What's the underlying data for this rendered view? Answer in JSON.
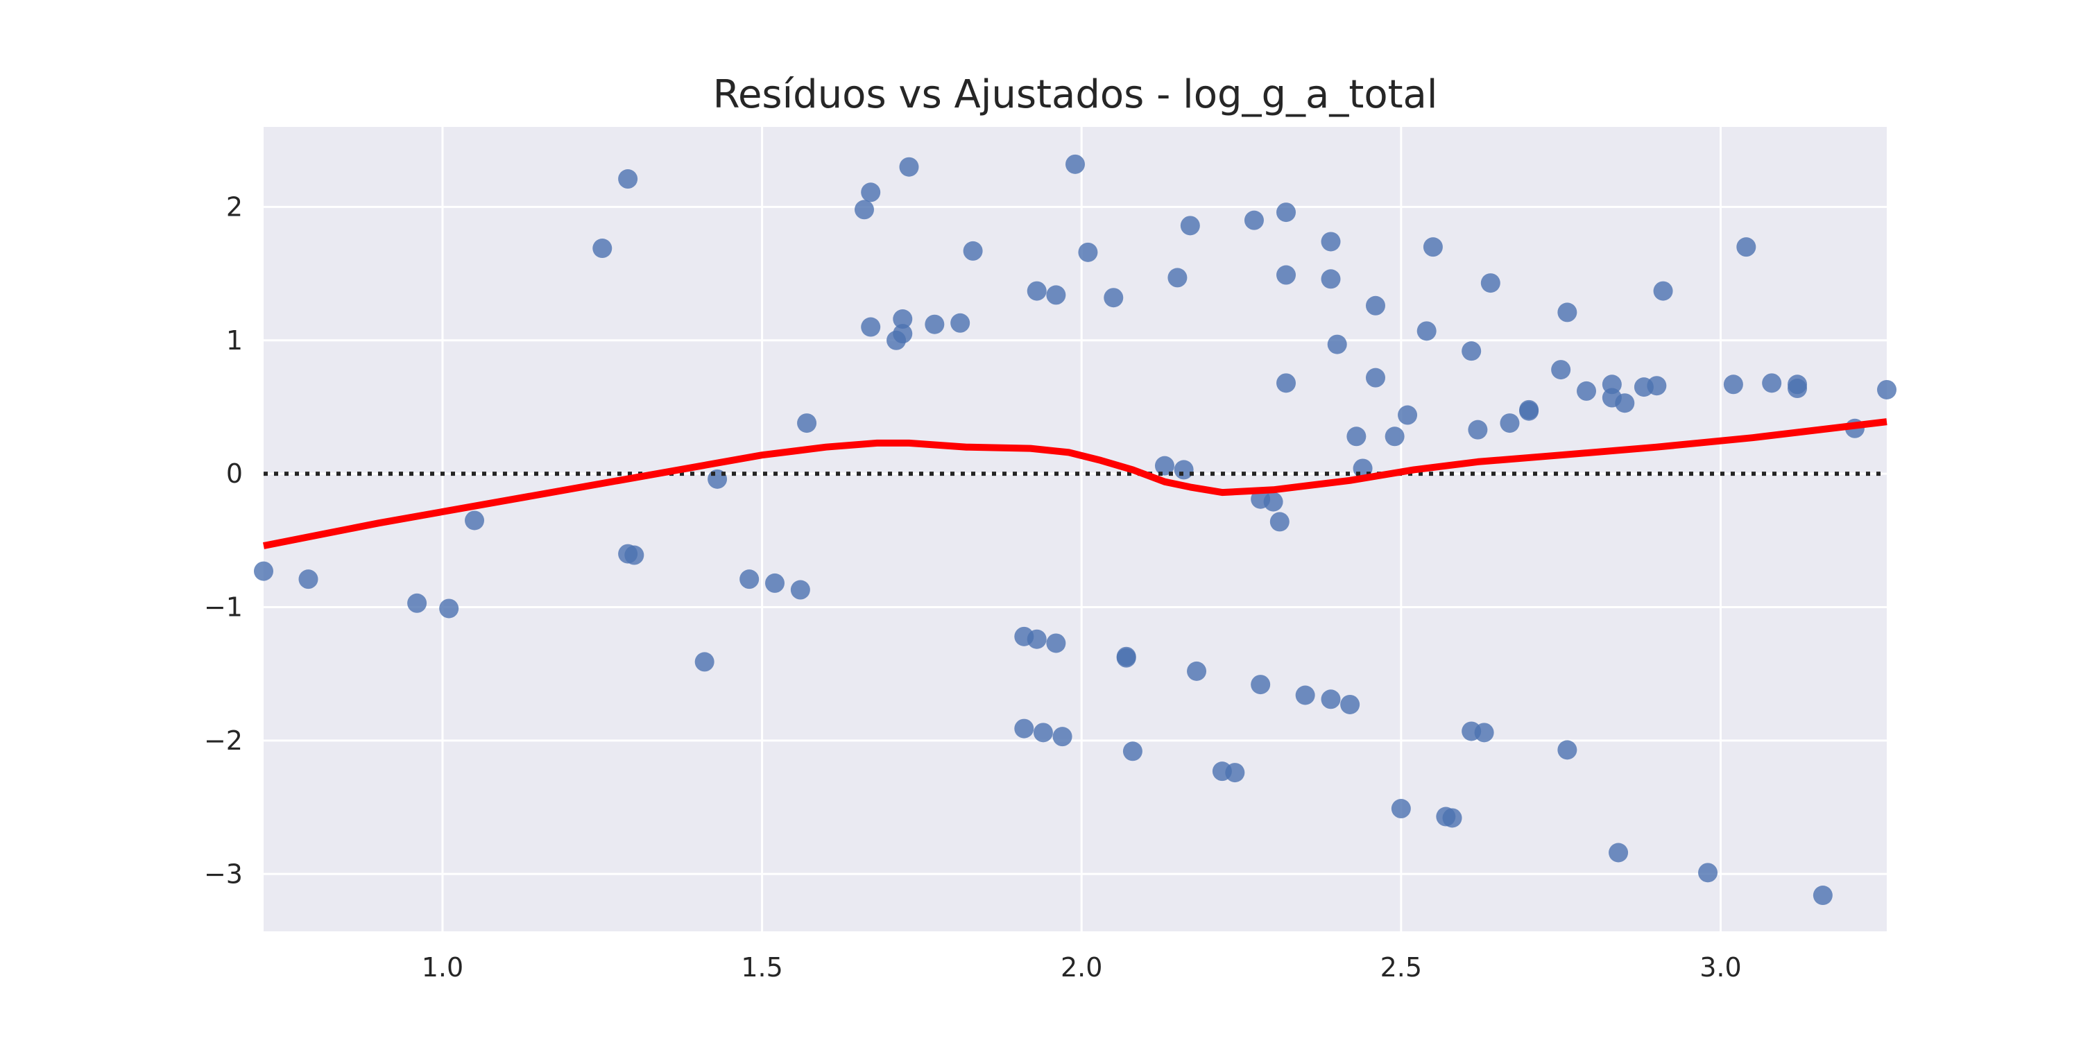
{
  "chart_data": {
    "type": "scatter",
    "title": "Resíduos vs Ajustados - log_g_a_total",
    "xlabel": "",
    "ylabel": "",
    "xlim": [
      0.72,
      3.26
    ],
    "ylim": [
      -3.43,
      2.6
    ],
    "xticks": [
      1.0,
      1.5,
      2.0,
      2.5,
      3.0
    ],
    "xtick_labels": [
      "1.0",
      "1.5",
      "2.0",
      "2.5",
      "3.0"
    ],
    "yticks": [
      2,
      1,
      0,
      -1,
      -2,
      -3
    ],
    "ytick_labels": [
      "2",
      "1",
      "0",
      "−1",
      "−2",
      "−3"
    ],
    "grid": true,
    "reference_line": {
      "y": 0,
      "style": "dotted",
      "color": "#262626"
    },
    "colors": {
      "background": "#EAEAF2",
      "grid": "#FFFFFF",
      "points": "#4C72B0",
      "smooth_line": "#FF0000"
    },
    "points": [
      [
        0.72,
        -0.73
      ],
      [
        0.79,
        -0.79
      ],
      [
        0.96,
        -0.97
      ],
      [
        1.01,
        -1.01
      ],
      [
        1.05,
        -0.35
      ],
      [
        1.25,
        1.69
      ],
      [
        1.29,
        2.21
      ],
      [
        1.29,
        -0.6
      ],
      [
        1.3,
        -0.61
      ],
      [
        1.41,
        -1.41
      ],
      [
        1.43,
        -0.04
      ],
      [
        1.48,
        -0.79
      ],
      [
        1.52,
        -0.82
      ],
      [
        1.56,
        -0.87
      ],
      [
        1.57,
        0.38
      ],
      [
        1.66,
        1.98
      ],
      [
        1.67,
        2.11
      ],
      [
        1.67,
        1.1
      ],
      [
        1.71,
        1.0
      ],
      [
        1.72,
        1.16
      ],
      [
        1.72,
        1.05
      ],
      [
        1.73,
        2.3
      ],
      [
        1.77,
        1.12
      ],
      [
        1.81,
        1.13
      ],
      [
        1.83,
        1.67
      ],
      [
        1.91,
        -1.22
      ],
      [
        1.91,
        -1.91
      ],
      [
        1.93,
        1.37
      ],
      [
        1.93,
        -1.24
      ],
      [
        1.94,
        -1.94
      ],
      [
        1.96,
        1.34
      ],
      [
        1.96,
        -1.27
      ],
      [
        1.97,
        -1.97
      ],
      [
        1.99,
        2.32
      ],
      [
        2.01,
        1.66
      ],
      [
        2.05,
        1.32
      ],
      [
        2.07,
        -1.37
      ],
      [
        2.07,
        -1.38
      ],
      [
        2.08,
        -2.08
      ],
      [
        2.13,
        0.06
      ],
      [
        2.15,
        1.47
      ],
      [
        2.16,
        0.03
      ],
      [
        2.17,
        1.86
      ],
      [
        2.18,
        -1.48
      ],
      [
        2.22,
        -2.23
      ],
      [
        2.24,
        -2.24
      ],
      [
        2.27,
        1.9
      ],
      [
        2.28,
        -1.58
      ],
      [
        2.28,
        -0.19
      ],
      [
        2.3,
        -0.21
      ],
      [
        2.31,
        -0.36
      ],
      [
        2.32,
        1.49
      ],
      [
        2.32,
        0.68
      ],
      [
        2.32,
        1.96
      ],
      [
        2.35,
        -1.66
      ],
      [
        2.39,
        1.74
      ],
      [
        2.39,
        1.46
      ],
      [
        2.39,
        -1.69
      ],
      [
        2.4,
        0.97
      ],
      [
        2.42,
        -1.73
      ],
      [
        2.43,
        0.28
      ],
      [
        2.44,
        0.04
      ],
      [
        2.46,
        0.72
      ],
      [
        2.46,
        1.26
      ],
      [
        2.49,
        0.28
      ],
      [
        2.5,
        -2.51
      ],
      [
        2.51,
        0.44
      ],
      [
        2.54,
        1.07
      ],
      [
        2.55,
        1.7
      ],
      [
        2.57,
        -2.57
      ],
      [
        2.58,
        -2.58
      ],
      [
        2.61,
        0.92
      ],
      [
        2.61,
        -1.93
      ],
      [
        2.62,
        0.33
      ],
      [
        2.63,
        -1.94
      ],
      [
        2.64,
        1.43
      ],
      [
        2.67,
        0.38
      ],
      [
        2.7,
        0.48
      ],
      [
        2.7,
        0.47
      ],
      [
        2.75,
        0.78
      ],
      [
        2.76,
        1.21
      ],
      [
        2.76,
        -2.07
      ],
      [
        2.79,
        0.62
      ],
      [
        2.83,
        0.57
      ],
      [
        2.83,
        0.67
      ],
      [
        2.84,
        -2.84
      ],
      [
        2.85,
        0.53
      ],
      [
        2.88,
        0.65
      ],
      [
        2.9,
        0.66
      ],
      [
        2.91,
        1.37
      ],
      [
        2.98,
        -2.99
      ],
      [
        3.02,
        0.67
      ],
      [
        3.04,
        1.7
      ],
      [
        3.08,
        0.68
      ],
      [
        3.12,
        0.64
      ],
      [
        3.12,
        0.67
      ],
      [
        3.16,
        -3.16
      ],
      [
        3.21,
        0.34
      ],
      [
        3.26,
        0.63
      ]
    ],
    "smooth_line": [
      [
        0.72,
        -0.54
      ],
      [
        0.9,
        -0.37
      ],
      [
        1.1,
        -0.2
      ],
      [
        1.3,
        -0.03
      ],
      [
        1.5,
        0.14
      ],
      [
        1.6,
        0.2
      ],
      [
        1.68,
        0.23
      ],
      [
        1.73,
        0.23
      ],
      [
        1.82,
        0.2
      ],
      [
        1.92,
        0.19
      ],
      [
        1.98,
        0.16
      ],
      [
        2.03,
        0.1
      ],
      [
        2.08,
        0.03
      ],
      [
        2.13,
        -0.06
      ],
      [
        2.17,
        -0.1
      ],
      [
        2.22,
        -0.14
      ],
      [
        2.3,
        -0.12
      ],
      [
        2.42,
        -0.05
      ],
      [
        2.52,
        0.03
      ],
      [
        2.62,
        0.09
      ],
      [
        2.75,
        0.14
      ],
      [
        2.9,
        0.2
      ],
      [
        3.05,
        0.27
      ],
      [
        3.26,
        0.39
      ]
    ]
  }
}
